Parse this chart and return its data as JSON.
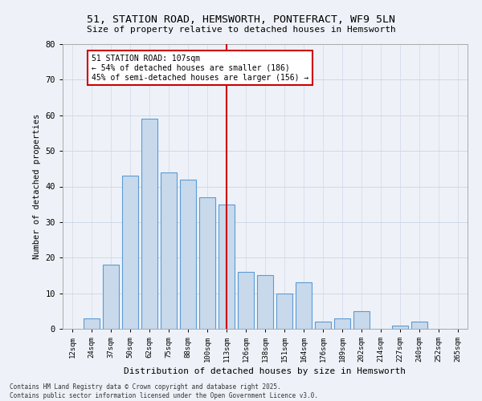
{
  "title_line1": "51, STATION ROAD, HEMSWORTH, PONTEFRACT, WF9 5LN",
  "title_line2": "Size of property relative to detached houses in Hemsworth",
  "xlabel": "Distribution of detached houses by size in Hemsworth",
  "ylabel": "Number of detached properties",
  "categories": [
    "12sqm",
    "24sqm",
    "37sqm",
    "50sqm",
    "62sqm",
    "75sqm",
    "88sqm",
    "100sqm",
    "113sqm",
    "126sqm",
    "138sqm",
    "151sqm",
    "164sqm",
    "176sqm",
    "189sqm",
    "202sqm",
    "214sqm",
    "227sqm",
    "240sqm",
    "252sqm",
    "265sqm"
  ],
  "values": [
    0,
    3,
    18,
    43,
    59,
    44,
    42,
    37,
    35,
    16,
    15,
    10,
    13,
    2,
    3,
    5,
    0,
    1,
    2,
    0,
    0
  ],
  "bar_color": "#c8d9ec",
  "bar_edge_color": "#5b9bd5",
  "vline_x": 8.0,
  "vline_color": "#cc0000",
  "annotation_text": "51 STATION ROAD: 107sqm\n← 54% of detached houses are smaller (186)\n45% of semi-detached houses are larger (156) →",
  "annotation_box_color": "#ffffff",
  "annotation_box_edge": "#cc0000",
  "ylim": [
    0,
    80
  ],
  "yticks": [
    0,
    10,
    20,
    30,
    40,
    50,
    60,
    70,
    80
  ],
  "footnote": "Contains HM Land Registry data © Crown copyright and database right 2025.\nContains public sector information licensed under the Open Government Licence v3.0.",
  "grid_color": "#d0d8e8",
  "background_color": "#eef2f8"
}
